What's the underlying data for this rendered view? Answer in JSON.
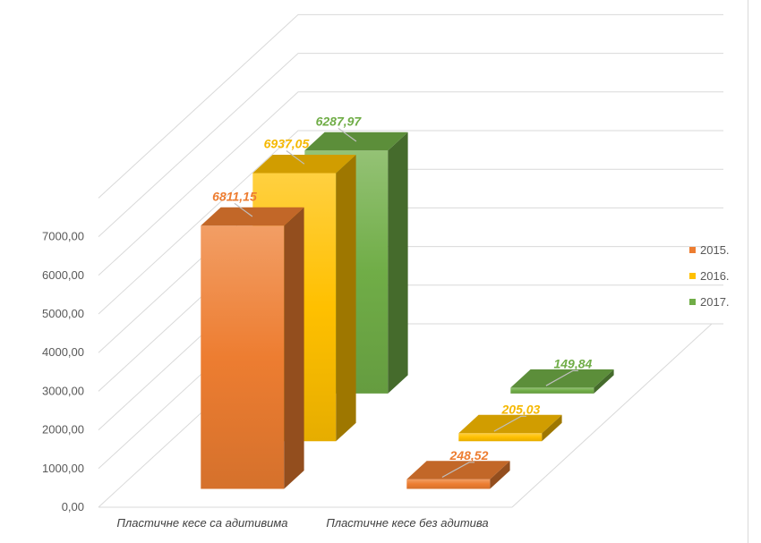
{
  "chart_data": {
    "type": "bar",
    "categories": [
      "Пластичне кесе са адитивима",
      "Пластичне кесе без адитива"
    ],
    "series": [
      {
        "name": "2015.",
        "values": [
          6811.15,
          248.52
        ],
        "labels": [
          "6811,15",
          "248,52"
        ],
        "color": "#ED7D31",
        "label_color": "#ED7D31"
      },
      {
        "name": "2016.",
        "values": [
          6937.05,
          205.03
        ],
        "labels": [
          "6937,05",
          "205,03"
        ],
        "color": "#FFC000",
        "label_color": "#F5B800"
      },
      {
        "name": "2017.",
        "values": [
          6287.97,
          149.84
        ],
        "labels": [
          "6287,97",
          "149,84"
        ],
        "color": "#70AD47",
        "label_color": "#70AD47"
      }
    ],
    "yticks": [
      "0,00",
      "1000,00",
      "2000,00",
      "3000,00",
      "4000,00",
      "5000,00",
      "6000,00",
      "7000,00"
    ],
    "ylim": [
      0,
      7000
    ],
    "legend_position": "right",
    "grid": true,
    "title": "",
    "xlabel": "",
    "ylabel": ""
  }
}
